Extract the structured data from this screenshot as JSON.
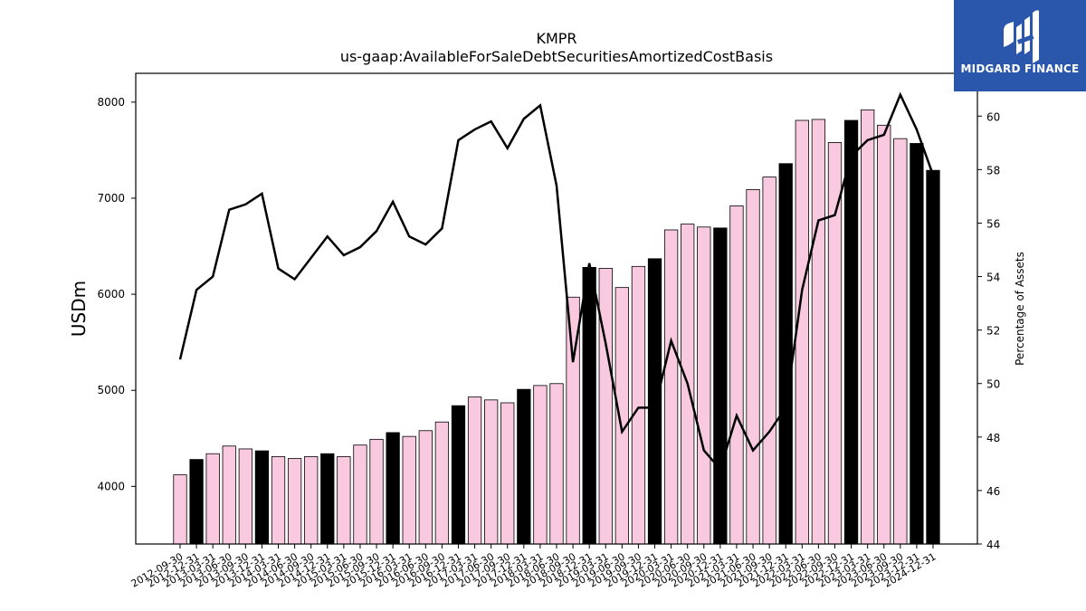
{
  "chart_data": {
    "type": "bar",
    "title": "KMPR",
    "subtitle": "us-gaap:AvailableForSaleDebtSecuritiesAmortizedCostBasis",
    "ylabel": "USDm",
    "y2label": "Percentage of Assets",
    "ylim": [
      3400,
      8300
    ],
    "y2lim": [
      44,
      61.6
    ],
    "yticks": [
      4000,
      5000,
      6000,
      7000,
      8000
    ],
    "y2ticks": [
      44,
      46,
      48,
      50,
      52,
      54,
      56,
      58,
      60
    ],
    "colors": {
      "quarter": "#f9c9e0",
      "year_end": "#000000",
      "edge": "#000000",
      "line": "#000000"
    },
    "categories": [
      "2012-09-30",
      "2012-12-31",
      "2013-03-31",
      "2013-06-30",
      "2013-09-30",
      "2013-12-31",
      "2014-03-31",
      "2014-06-30",
      "2014-09-30",
      "2014-12-31",
      "2015-03-31",
      "2015-06-30",
      "2015-09-30",
      "2015-12-31",
      "2016-03-31",
      "2016-06-30",
      "2016-09-30",
      "2016-12-31",
      "2017-03-31",
      "2017-06-30",
      "2017-09-30",
      "2017-12-31",
      "2018-03-31",
      "2018-06-30",
      "2018-09-30",
      "2018-12-31",
      "2019-03-31",
      "2019-06-30",
      "2019-09-30",
      "2019-12-31",
      "2020-03-31",
      "2020-06-30",
      "2020-09-30",
      "2020-12-31",
      "2021-03-31",
      "2021-06-30",
      "2021-09-30",
      "2021-12-31",
      "2022-03-31",
      "2022-06-30",
      "2022-09-30",
      "2022-12-31",
      "2023-03-31",
      "2023-06-30",
      "2023-09-30",
      "2023-12-31",
      "2024-12-31"
    ],
    "series": [
      {
        "kind": "bar",
        "axis": "left",
        "values": [
          4120,
          4280,
          4340,
          4420,
          4390,
          4370,
          4310,
          4290,
          4310,
          4340,
          4310,
          4430,
          4490,
          4560,
          4520,
          4580,
          4670,
          4840,
          4930,
          4900,
          4870,
          5010,
          5050,
          5070,
          5970,
          6280,
          6270,
          6070,
          6290,
          6370,
          6670,
          6730,
          6700,
          6690,
          6920,
          7090,
          7220,
          7360,
          7810,
          7820,
          7580,
          7810,
          7920,
          7760,
          7620,
          7570,
          7290
        ],
        "year_end": [
          false,
          true,
          false,
          false,
          false,
          true,
          false,
          false,
          false,
          true,
          false,
          false,
          false,
          true,
          false,
          false,
          false,
          true,
          false,
          false,
          false,
          true,
          false,
          false,
          false,
          true,
          false,
          false,
          false,
          true,
          false,
          false,
          false,
          true,
          false,
          false,
          false,
          true,
          false,
          false,
          false,
          true,
          false,
          false,
          false,
          true,
          true
        ]
      },
      {
        "kind": "line",
        "axis": "right",
        "values": [
          50.9,
          53.5,
          54.0,
          56.5,
          56.7,
          57.1,
          54.3,
          53.9,
          54.7,
          55.5,
          54.8,
          55.1,
          55.7,
          56.8,
          55.5,
          55.2,
          55.8,
          59.1,
          59.5,
          59.8,
          58.8,
          59.9,
          60.4,
          57.4,
          50.8,
          54.5,
          51.5,
          48.2,
          49.1,
          49.1,
          51.6,
          50.0,
          47.5,
          46.8,
          48.8,
          47.5,
          48.2,
          49.1,
          53.5,
          56.1,
          56.3,
          58.5,
          59.1,
          59.3,
          60.8,
          59.5,
          57.8
        ]
      }
    ]
  },
  "logo": {
    "brand": "MIDGARD FINANCE"
  }
}
